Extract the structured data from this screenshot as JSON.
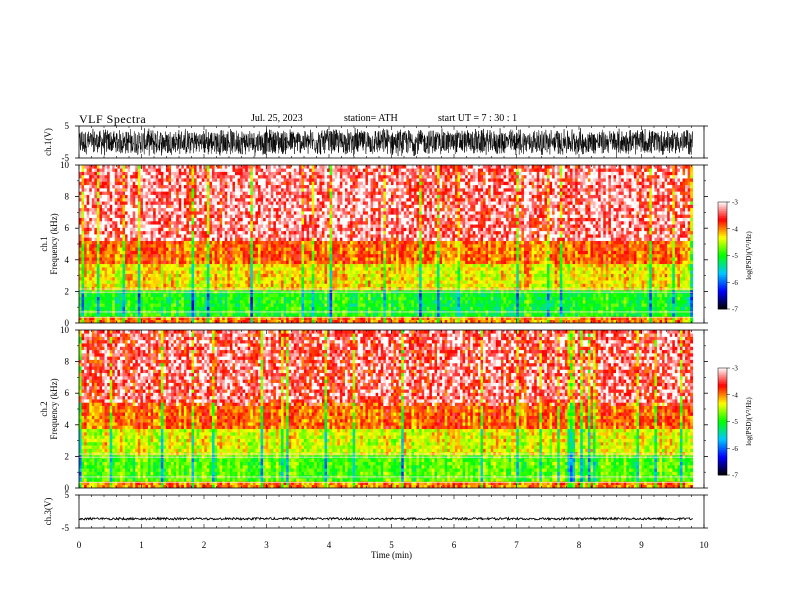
{
  "header": {
    "title": "VLF  Spectra",
    "date": "Jul.  25,  2023",
    "station": "station= ATH",
    "start": "start  UT  =    7  : 30 : 1"
  },
  "chart_data": [
    {
      "type": "line",
      "ylabel": "ch.1(V)",
      "yticks": [
        "5",
        "-5"
      ],
      "ylim": [
        -5,
        5
      ],
      "description_of_signal": "dense broadband waveform filling most of the range"
    },
    {
      "type": "heatmap",
      "ylabel_line1": "ch.1",
      "ylabel_line2": "Frequency  (kHz)",
      "yticks": [
        "10",
        "8",
        "6",
        "4",
        "2",
        "0"
      ],
      "ylim": [
        0,
        10
      ],
      "colorbar": {
        "label": "log(PSD)(V²/Hz)",
        "ticks": [
          "-3",
          "-4",
          "-5",
          "-6",
          "-7"
        ],
        "range": [
          -7,
          -3
        ]
      },
      "bands": [
        {
          "fmin": 0.0,
          "fmax": 0.5,
          "level": -4.0
        },
        {
          "fmin": 0.5,
          "fmax": 2.0,
          "level": -5.0
        },
        {
          "fmin": 2.0,
          "fmax": 3.7,
          "level": -4.3
        },
        {
          "fmin": 3.7,
          "fmax": 5.2,
          "level": -3.9
        },
        {
          "fmin": 5.2,
          "fmax": 10.0,
          "level": -3.5
        }
      ]
    },
    {
      "type": "heatmap",
      "ylabel_line1": "ch.2",
      "ylabel_line2": "Frequency  (kHz)",
      "yticks": [
        "10",
        "8",
        "6",
        "4",
        "2",
        "0"
      ],
      "ylim": [
        0,
        10
      ],
      "colorbar": {
        "label": "log(PSD)(V²/Hz)",
        "ticks": [
          "-3",
          "-4",
          "-5",
          "-6",
          "-7"
        ],
        "range": [
          -7,
          -3
        ]
      },
      "bands": [
        {
          "fmin": 0.0,
          "fmax": 0.5,
          "level": -4.0
        },
        {
          "fmin": 0.5,
          "fmax": 2.0,
          "level": -4.8
        },
        {
          "fmin": 2.0,
          "fmax": 3.8,
          "level": -4.4
        },
        {
          "fmin": 3.8,
          "fmax": 5.5,
          "level": -3.9
        },
        {
          "fmin": 5.5,
          "fmax": 10.0,
          "level": -3.6
        }
      ]
    },
    {
      "type": "line",
      "ylabel": "ch.3(V)",
      "yticks": [
        "5",
        "-5"
      ],
      "ylim": [
        -5,
        5
      ],
      "baseline": -2.2
    }
  ],
  "xaxis": {
    "label": "Time  (min)",
    "ticks": [
      "0",
      "1",
      "2",
      "3",
      "4",
      "5",
      "6",
      "7",
      "8",
      "9",
      "10"
    ],
    "xlim": [
      0,
      10
    ],
    "data_end": 9.82
  },
  "colors": {
    "cmap": [
      "#000000",
      "#0000ff",
      "#00c8ff",
      "#00ff00",
      "#ffff00",
      "#ff0000",
      "#ffffff"
    ]
  }
}
